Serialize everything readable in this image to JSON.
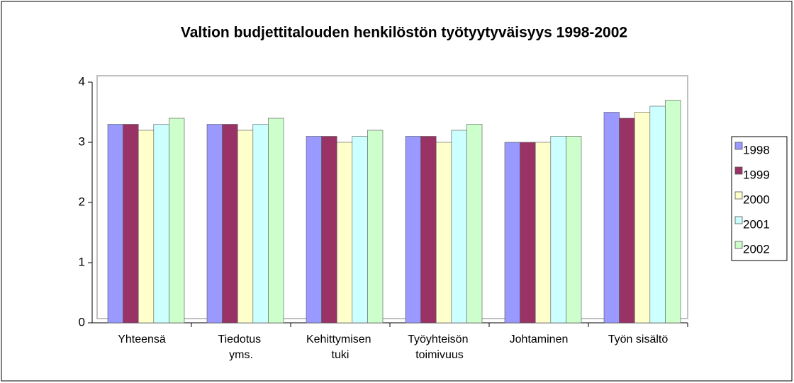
{
  "chart_data": {
    "type": "bar",
    "title": "Valtion budjettitalouden henkilöstön työtyytyväisyys 1998-2002",
    "categories": [
      "Yhteensä",
      "Tiedotus yms.",
      "Kehittymisen tuki",
      "Työyhteisön toimivuus",
      "Johtaminen",
      "Työn sisältö"
    ],
    "series": [
      {
        "name": "1998",
        "color": "#9999ff",
        "values": [
          3.3,
          3.3,
          3.1,
          3.1,
          3.0,
          3.5
        ]
      },
      {
        "name": "1999",
        "color": "#993366",
        "values": [
          3.3,
          3.3,
          3.1,
          3.1,
          3.0,
          3.4
        ]
      },
      {
        "name": "2000",
        "color": "#ffffcc",
        "values": [
          3.2,
          3.2,
          3.0,
          3.0,
          3.0,
          3.5
        ]
      },
      {
        "name": "2001",
        "color": "#ccffff",
        "values": [
          3.3,
          3.3,
          3.1,
          3.2,
          3.1,
          3.6
        ]
      },
      {
        "name": "2002",
        "color": "#ccffcc",
        "values": [
          3.4,
          3.4,
          3.2,
          3.3,
          3.1,
          3.7
        ]
      }
    ],
    "ylim": [
      0,
      4
    ],
    "yticks": [
      0,
      1,
      2,
      3,
      4
    ],
    "legend": "right"
  }
}
